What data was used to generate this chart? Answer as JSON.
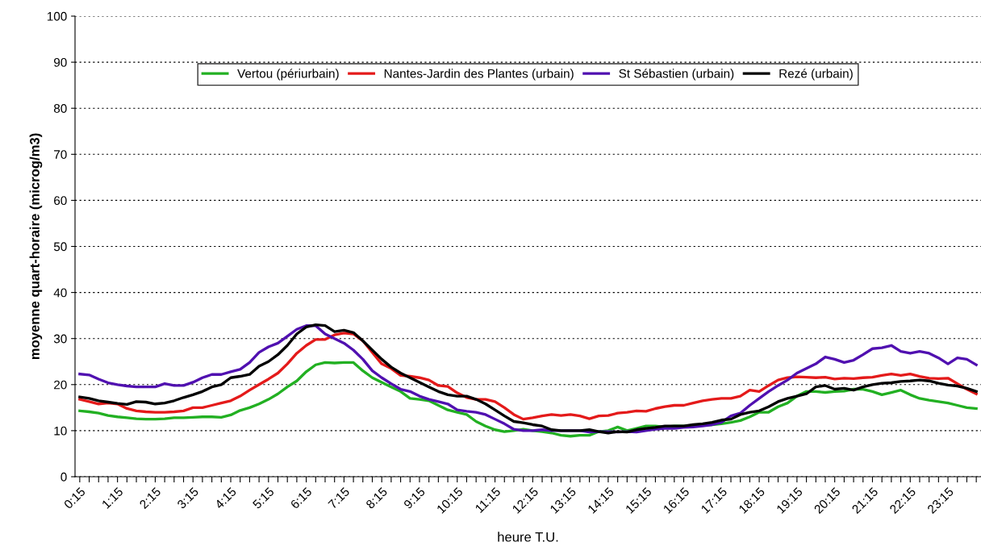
{
  "chart_data": {
    "type": "line",
    "xlabel": "heure T.U.",
    "ylabel": "moyenne quart-horaire (microg/m3)",
    "categories": [
      "0:15",
      null,
      null,
      null,
      "1:15",
      null,
      null,
      null,
      "2:15",
      null,
      null,
      null,
      "3:15",
      null,
      null,
      null,
      "4:15",
      null,
      null,
      null,
      "5:15",
      null,
      null,
      null,
      "6:15",
      null,
      null,
      null,
      "7:15",
      null,
      null,
      null,
      "8:15",
      null,
      null,
      null,
      "9:15",
      null,
      null,
      null,
      "10:15",
      null,
      null,
      null,
      "11:15",
      null,
      null,
      null,
      "12:15",
      null,
      null,
      null,
      "13:15",
      null,
      null,
      null,
      "14:15",
      null,
      null,
      null,
      "15:15",
      null,
      null,
      null,
      "16:15",
      null,
      null,
      null,
      "17:15",
      null,
      null,
      null,
      "18:15",
      null,
      null,
      null,
      "19:15",
      null,
      null,
      null,
      "20:15",
      null,
      null,
      null,
      "21:15",
      null,
      null,
      null,
      "22:15",
      null,
      null,
      null,
      "23:15",
      null,
      null,
      null
    ],
    "series": [
      {
        "name": "Vertou (périurbain)",
        "color": "#22b022",
        "values": [
          14.3,
          14.1,
          13.8,
          13.3,
          13.0,
          12.8,
          12.6,
          12.5,
          12.5,
          12.6,
          12.8,
          12.8,
          12.9,
          13.0,
          13.0,
          12.9,
          13.4,
          14.4,
          15.0,
          15.8,
          16.8,
          18.0,
          19.5,
          20.8,
          22.8,
          24.3,
          24.8,
          24.7,
          24.8,
          24.8,
          23.0,
          21.5,
          20.5,
          19.5,
          18.5,
          17.0,
          16.8,
          16.5,
          15.5,
          14.5,
          14.0,
          13.5,
          12.0,
          11.0,
          10.2,
          9.8,
          10.0,
          10.3,
          10.0,
          9.8,
          9.5,
          9.0,
          8.8,
          9.0,
          9.0,
          9.8,
          10.0,
          10.8,
          10.0,
          10.5,
          11.0,
          11.0,
          10.8,
          11.0,
          11.0,
          11.0,
          11.2,
          11.3,
          11.5,
          11.8,
          12.2,
          13.0,
          14.0,
          14.0,
          15.2,
          16.0,
          17.5,
          18.5,
          18.5,
          18.3,
          18.5,
          18.6,
          19.0,
          19.0,
          18.5,
          17.8,
          18.3,
          18.8,
          17.8,
          17.0,
          16.6,
          16.3,
          16.0,
          15.5,
          15.0,
          14.8
        ]
      },
      {
        "name": "Nantes-Jardin des Plantes (urbain)",
        "color": "#e41a1a",
        "values": [
          16.8,
          16.3,
          15.8,
          16.0,
          15.8,
          14.8,
          14.3,
          14.1,
          14.0,
          14.0,
          14.1,
          14.3,
          15.0,
          15.0,
          15.5,
          16.0,
          16.5,
          17.5,
          18.8,
          20.0,
          21.2,
          22.5,
          24.5,
          26.8,
          28.5,
          29.8,
          29.8,
          30.8,
          31.2,
          31.0,
          29.5,
          27.0,
          24.5,
          23.5,
          22.0,
          21.8,
          21.5,
          21.0,
          19.8,
          19.6,
          18.2,
          17.2,
          16.8,
          16.8,
          16.3,
          15.0,
          13.5,
          12.5,
          12.8,
          13.2,
          13.5,
          13.3,
          13.5,
          13.2,
          12.6,
          13.2,
          13.3,
          13.8,
          14.0,
          14.3,
          14.2,
          14.8,
          15.2,
          15.5,
          15.5,
          16.0,
          16.5,
          16.8,
          17.0,
          17.0,
          17.5,
          18.8,
          18.5,
          19.8,
          21.0,
          21.5,
          21.7,
          21.6,
          21.5,
          21.6,
          21.2,
          21.4,
          21.3,
          21.5,
          21.6,
          22.0,
          22.3,
          22.0,
          22.3,
          21.8,
          21.4,
          21.3,
          21.4,
          20.2,
          19.0,
          18.0
        ]
      },
      {
        "name": "St Sébastien (urbain)",
        "color": "#5010b0",
        "values": [
          22.3,
          22.1,
          21.2,
          20.4,
          20.0,
          19.7,
          19.5,
          19.5,
          19.5,
          20.2,
          19.8,
          19.8,
          20.5,
          21.5,
          22.2,
          22.2,
          22.8,
          23.3,
          24.8,
          27.0,
          28.2,
          29.0,
          30.5,
          32.0,
          32.8,
          32.8,
          31.0,
          30.0,
          29.0,
          27.5,
          25.5,
          23.0,
          21.5,
          20.2,
          19.0,
          18.5,
          17.5,
          16.8,
          16.3,
          15.8,
          14.5,
          14.2,
          14.0,
          13.5,
          12.5,
          11.5,
          10.3,
          10.0,
          10.0,
          10.2,
          10.0,
          10.0,
          10.0,
          10.0,
          9.7,
          9.8,
          9.8,
          9.7,
          9.8,
          9.7,
          10.0,
          10.3,
          10.5,
          10.5,
          10.7,
          10.8,
          11.0,
          11.3,
          11.8,
          13.2,
          13.8,
          15.5,
          17.0,
          18.5,
          19.8,
          21.0,
          22.5,
          23.5,
          24.5,
          26.0,
          25.5,
          24.8,
          25.3,
          26.5,
          27.8,
          28.0,
          28.5,
          27.2,
          26.8,
          27.2,
          26.8,
          25.8,
          24.5,
          25.8,
          25.5,
          24.3
        ]
      },
      {
        "name": "Rezé (urbain)",
        "color": "#000000",
        "values": [
          17.3,
          17.0,
          16.5,
          16.2,
          15.9,
          15.7,
          16.3,
          16.2,
          15.8,
          16.0,
          16.5,
          17.2,
          17.8,
          18.5,
          19.5,
          20.0,
          21.5,
          21.8,
          22.2,
          24.0,
          25.0,
          26.5,
          28.5,
          31.0,
          32.5,
          33.0,
          32.8,
          31.5,
          31.8,
          31.3,
          29.5,
          27.5,
          25.5,
          23.8,
          22.5,
          21.5,
          20.5,
          19.5,
          18.5,
          17.8,
          17.5,
          17.5,
          16.8,
          15.8,
          14.5,
          13.2,
          12.0,
          11.7,
          11.3,
          11.0,
          10.2,
          10.0,
          10.0,
          10.0,
          10.2,
          9.8,
          9.5,
          9.8,
          9.7,
          10.2,
          10.5,
          10.7,
          11.0,
          11.0,
          11.0,
          11.3,
          11.5,
          11.8,
          12.3,
          12.5,
          13.5,
          14.0,
          14.3,
          15.2,
          16.3,
          17.0,
          17.5,
          18.0,
          19.5,
          19.8,
          19.0,
          19.2,
          18.8,
          19.5,
          20.0,
          20.3,
          20.4,
          20.7,
          20.8,
          21.0,
          20.8,
          20.3,
          19.9,
          19.7,
          19.2,
          18.5
        ]
      }
    ],
    "ylim": [
      0,
      100
    ],
    "yticks": [
      0,
      10,
      20,
      30,
      40,
      50,
      60,
      70,
      80,
      90,
      100
    ],
    "grid": "y",
    "legend": "top",
    "marker": "none",
    "line_style": "solid"
  }
}
